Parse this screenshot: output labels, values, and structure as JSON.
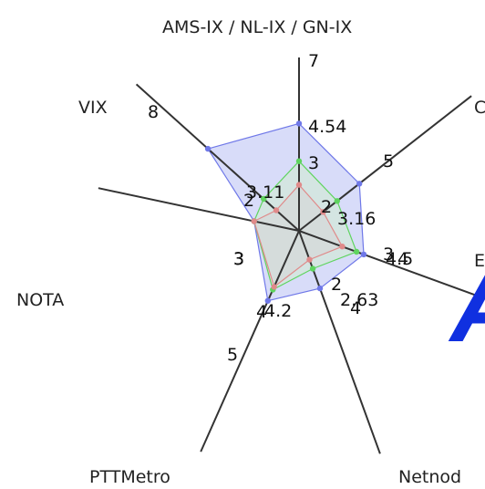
{
  "chart_data": {
    "type": "radar",
    "title": "",
    "axes": [
      "AMS-IX / NL-IX / GN-IX",
      "C",
      "E",
      "Netnod",
      "PTTMetro",
      "NOTA",
      "VIX"
    ],
    "axis_max": [
      7,
      5,
      5,
      4,
      5,
      3,
      8
    ],
    "scale_max": 10,
    "series": [
      {
        "values": [
          7,
          5,
          4.5,
          4,
          5,
          3,
          8
        ],
        "stroke": "#6f78e8",
        "fill": "#c8cdf7",
        "fill_opacity": 0.7,
        "labels": [
          "7",
          "5",
          "4.5",
          "4",
          "5",
          "3",
          "8"
        ]
      },
      {
        "values": [
          4.54,
          3.16,
          4,
          2.63,
          4.2,
          3,
          3.11
        ],
        "stroke": "#5fd45f",
        "fill": "#d2ecd0",
        "fill_opacity": 0.55,
        "labels": [
          "4.54",
          "3.16",
          "4",
          "2.63",
          "4.2",
          "3",
          "3.11"
        ]
      },
      {
        "values": [
          3,
          2,
          3,
          2,
          4,
          3,
          2
        ],
        "stroke": "#e08a8a",
        "fill": "#d6d6d6",
        "fill_opacity": 0.55,
        "labels": [
          "3",
          "2",
          "3",
          "2",
          "4",
          "3",
          "2"
        ]
      }
    ]
  },
  "overlay": {
    "letter_right_edge": "A",
    "color": "#1030e0"
  }
}
